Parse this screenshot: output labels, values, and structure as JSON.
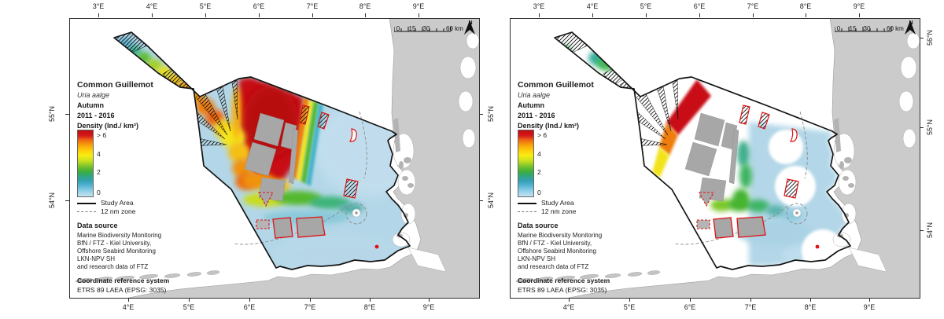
{
  "panel": {
    "title": "Common Guillemot",
    "species": "Uria aalge",
    "season": "Autumn",
    "years": "2011 - 2016",
    "density_label": "Density (Ind./ km²)",
    "ramp_labels": [
      "> 6",
      "4",
      "2",
      "0"
    ],
    "study_area_label": "Study Area",
    "nm_zone_label": "12 nm zone",
    "data_source_header": "Data source",
    "data_source_lines": [
      "Marine Biodiversity Monitoring",
      "BfN / FTZ - Kiel University,",
      "Offshore Seabird Monitoring",
      "LKN-NPV SH",
      "and research data of FTZ"
    ],
    "crs_header": "Coordinate reference system",
    "crs_value": "ETRS 89 LAEA (EPSG: 3035)",
    "scalebar": {
      "ticks": [
        "0",
        "15",
        "30"
      ],
      "end_label": "60 km"
    },
    "north_label": "N"
  },
  "axes": {
    "top": [
      "3°E",
      "4°E",
      "5°E",
      "6°E",
      "7°E",
      "8°E",
      "9°E"
    ],
    "bottom": [
      "4°E",
      "5°E",
      "6°E",
      "7°E",
      "8°E",
      "9°E"
    ],
    "left": [
      "55°N",
      "54°N"
    ],
    "middle": [
      "55°N",
      "54°N"
    ],
    "right": [
      "56°N",
      "55°N",
      "54°N"
    ]
  },
  "panels": [
    {
      "id": "left-map",
      "variant": "full"
    },
    {
      "id": "right-map",
      "variant": "masked"
    }
  ],
  "colors": {
    "ramp_top_to_bottom": [
      "#c00a0e",
      "#d7191c",
      "#ef6c12",
      "#f8a60c",
      "#fdd10a",
      "#f8ec12",
      "#c8e01e",
      "#7cc42c",
      "#3fae3a",
      "#2fa77c",
      "#35a0b8",
      "#5fb8d8",
      "#93cfe8",
      "#c5e4f2"
    ],
    "study_base_blue": "#b3d7e8",
    "density_red": "#c81014",
    "land_gray": "#cbcbcb",
    "windfarm_gray": "#a7a7a7",
    "protected_outline_red": "#e01112",
    "sea_white": "#ffffff",
    "outline_black": "#141414"
  }
}
